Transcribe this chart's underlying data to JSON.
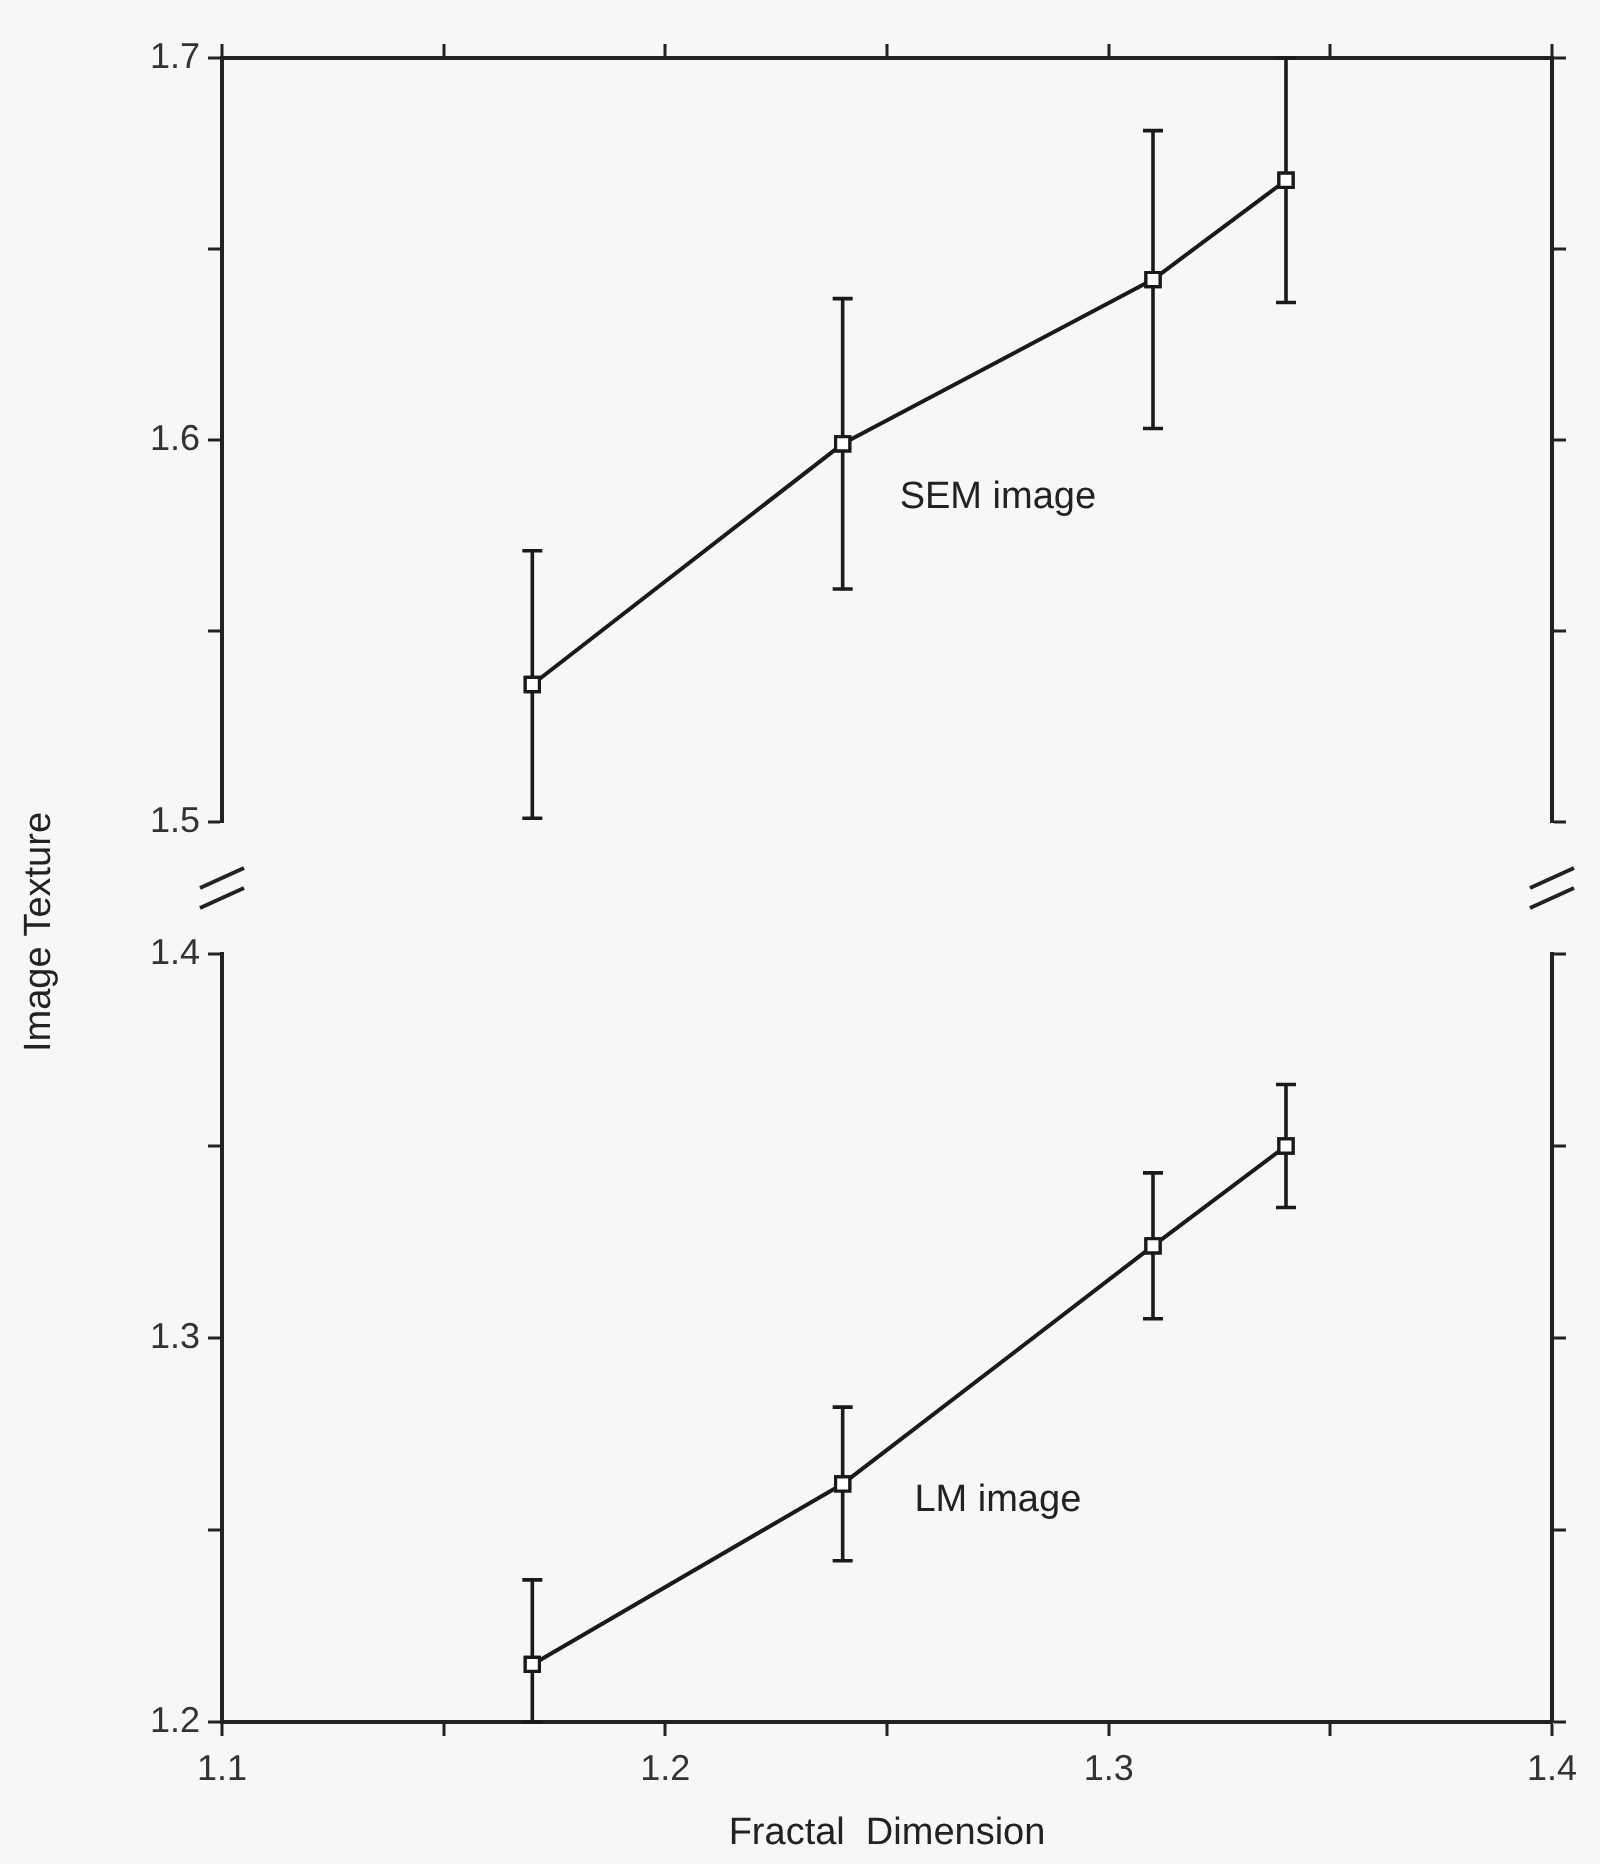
{
  "chart_data": [
    {
      "type": "line",
      "x": [
        1.17,
        1.24,
        1.31,
        1.34
      ],
      "xlim": [
        1.1,
        1.4
      ],
      "xticks": [
        {
          "value": 1.1,
          "label": null
        },
        {
          "value": 1.15,
          "label": null
        },
        {
          "value": 1.2,
          "label": null
        },
        {
          "value": 1.25,
          "label": null
        },
        {
          "value": 1.3,
          "label": null
        },
        {
          "value": 1.35,
          "label": null
        },
        {
          "value": 1.4,
          "label": null
        }
      ],
      "ylim": [
        1.5,
        1.7
      ],
      "yticks": [
        1.5,
        {
          "value": 1.55,
          "label": null
        },
        1.6,
        {
          "value": 1.65,
          "label": null
        },
        1.7
      ],
      "tick_labels": "y",
      "marker": "square",
      "line_style": "solid",
      "series": [
        {
          "name": "SEM image",
          "color": "#1a1a1a",
          "values": [
            1.536,
            1.599,
            1.642,
            1.668
          ],
          "errors": [
            0.035,
            0.038,
            0.039,
            0.032
          ]
        }
      ]
    },
    {
      "type": "line",
      "x": [
        1.17,
        1.24,
        1.31,
        1.34
      ],
      "xlim": [
        1.1,
        1.4
      ],
      "xticks": [
        1.1,
        {
          "value": 1.15,
          "label": null
        },
        1.2,
        {
          "value": 1.25,
          "label": null
        },
        1.3,
        {
          "value": 1.35,
          "label": null
        },
        1.4
      ],
      "ylim": [
        1.2,
        1.4
      ],
      "yticks": [
        1.2,
        {
          "value": 1.25,
          "label": null
        },
        1.3,
        {
          "value": 1.35,
          "label": null
        },
        1.4
      ],
      "xlabel": "Fractal  Dimension",
      "ylabel": "Image Texture",
      "marker": "square",
      "line_style": "solid",
      "series": [
        {
          "name": "LM image",
          "color": "#1a1a1a",
          "values": [
            1.215,
            1.262,
            1.324,
            1.35
          ],
          "errors": [
            [
              1.2,
              1.237
            ],
            0.02,
            0.019,
            0.016
          ]
        }
      ]
    }
  ]
}
